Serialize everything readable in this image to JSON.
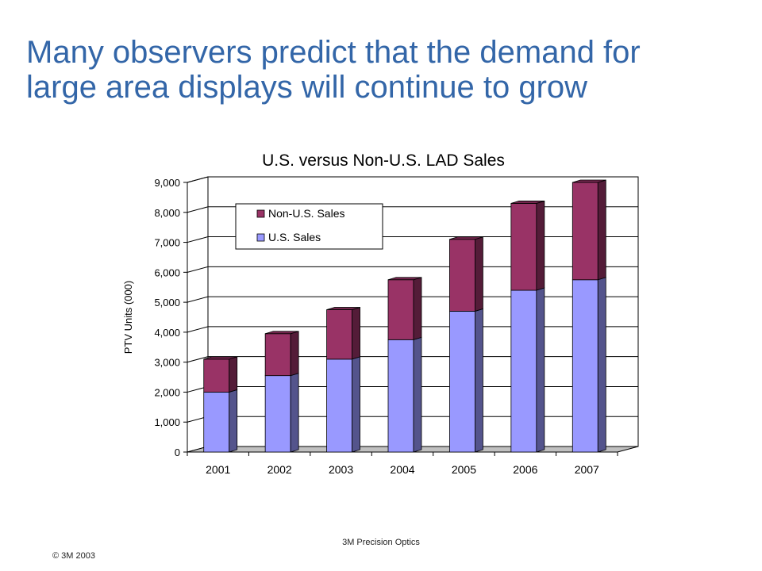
{
  "slide": {
    "title_line1": "Many observers predict that the demand for",
    "title_line2": "large area displays will continue to grow",
    "footer_center": "3M Precision Optics",
    "footer_left": "© 3M 2003"
  },
  "chart_data": {
    "type": "bar",
    "stacked": true,
    "three_d": true,
    "title": "U.S. versus Non-U.S. LAD Sales",
    "xlabel": "",
    "ylabel": "PTV Units (000)",
    "categories": [
      "2001",
      "2002",
      "2003",
      "2004",
      "2005",
      "2006",
      "2007"
    ],
    "series": [
      {
        "name": "U.S. Sales",
        "color": "#9999ff",
        "values": [
          2000,
          2550,
          3100,
          3750,
          4700,
          5400,
          5750
        ]
      },
      {
        "name": "Non-U.S. Sales",
        "color": "#993366",
        "values": [
          1100,
          1400,
          1650,
          2000,
          2400,
          2900,
          3250
        ]
      }
    ],
    "ylim": [
      0,
      9000
    ],
    "yticks": [
      "0",
      "1,000",
      "2,000",
      "3,000",
      "4,000",
      "5,000",
      "6,000",
      "7,000",
      "8,000",
      "9,000"
    ],
    "grid": true,
    "legend": {
      "placement": "top-left",
      "order": [
        "Non-U.S. Sales",
        "U.S. Sales"
      ]
    }
  }
}
